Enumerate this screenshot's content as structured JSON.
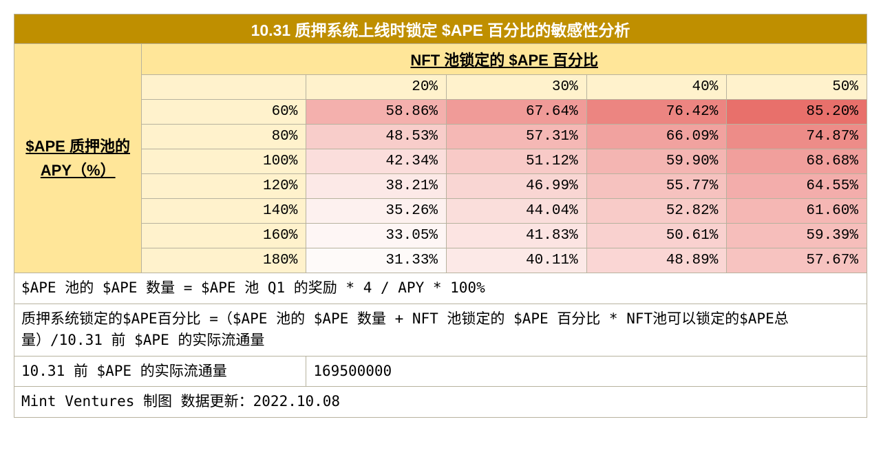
{
  "title": "10.31 质押系统上线时锁定 $APE 百分比的敏感性分析",
  "col_axis_label": "NFT 池锁定的 $APE 百分比",
  "row_axis_label": "$APE 质押池的 APY（%）",
  "col_headers": [
    "20%",
    "30%",
    "40%",
    "50%"
  ],
  "row_headers": [
    "60%",
    "80%",
    "100%",
    "120%",
    "140%",
    "160%",
    "180%"
  ],
  "grid": [
    [
      "58.86%",
      "67.64%",
      "76.42%",
      "85.20%"
    ],
    [
      "48.53%",
      "57.31%",
      "66.09%",
      "74.87%"
    ],
    [
      "42.34%",
      "51.12%",
      "59.90%",
      "68.68%"
    ],
    [
      "38.21%",
      "46.99%",
      "55.77%",
      "64.55%"
    ],
    [
      "35.26%",
      "44.04%",
      "52.82%",
      "61.60%"
    ],
    [
      "33.05%",
      "41.83%",
      "50.61%",
      "59.39%"
    ],
    [
      "31.33%",
      "40.11%",
      "48.89%",
      "57.67%"
    ]
  ],
  "grid_colors": [
    [
      "#f4b0ad",
      "#f09b98",
      "#ec8581",
      "#e8706b"
    ],
    [
      "#f8cdca",
      "#f5b8b5",
      "#f1a29f",
      "#ed8c88"
    ],
    [
      "#fbdedc",
      "#f8cac7",
      "#f4b5b2",
      "#f19f9c"
    ],
    [
      "#fce9e7",
      "#f9d6d3",
      "#f6c2bf",
      "#f3adab"
    ],
    [
      "#fdf1ef",
      "#fadedb",
      "#f8cbc8",
      "#f5b7b4"
    ],
    [
      "#fef6f5",
      "#fce4e2",
      "#f9d1cf",
      "#f6bebb"
    ],
    [
      "#fefaf9",
      "#fce9e7",
      "#fad6d4",
      "#f7c3c0"
    ]
  ],
  "formula1": "$APE 池的 $APE 数量 = $APE 池 Q1 的奖励 * 4 / APY * 100%",
  "formula2": "质押系统锁定的$APE百分比 =（$APE 池的 $APE 数量 + NFT 池锁定的 $APE 百分比 * NFT池可以锁定的$APE总量）/10.31 前 $APE 的实际流通量",
  "supply_label": "10.31 前 $APE 的实际流通量",
  "supply_value": "169500000",
  "credit": "Mint Ventures 制图 数据更新：2022.10.08",
  "style": {
    "title_bg": "#bf8f00",
    "title_fg": "#ffffff",
    "header_bg": "#ffe699",
    "cell_bg": "#fff2cc",
    "border": "#b7b29e",
    "font_title": 23,
    "font_header": 22,
    "font_cell": 21
  }
}
